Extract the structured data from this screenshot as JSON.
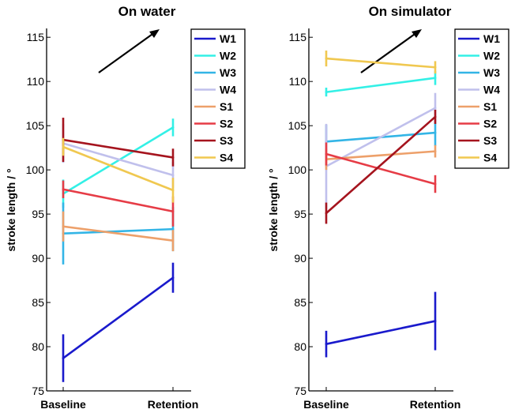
{
  "chart_data": [
    {
      "type": "line",
      "title": "On water",
      "xlabel": "",
      "ylabel": "stroke length / °",
      "categories": [
        "Baseline",
        "Retention"
      ],
      "ylim": [
        75,
        116
      ],
      "yticks": [
        75,
        80,
        85,
        90,
        95,
        100,
        105,
        110,
        115
      ],
      "legend": "top-right",
      "annotation": "arrow pointing up-right (longer strokes)",
      "series": [
        {
          "name": "W1",
          "color": "#1a1acc",
          "values": [
            78.7,
            87.8
          ],
          "errors": [
            2.7,
            1.7
          ]
        },
        {
          "name": "W2",
          "color": "#33f0e6",
          "values": [
            97.3,
            104.8
          ],
          "errors": [
            1.6,
            1.0
          ]
        },
        {
          "name": "W3",
          "color": "#33b5e6",
          "values": [
            92.8,
            93.3
          ],
          "errors": [
            3.5,
            2.5
          ]
        },
        {
          "name": "W4",
          "color": "#c0c0ec",
          "values": [
            103.0,
            99.4
          ],
          "errors": [
            2.2,
            1.5
          ]
        },
        {
          "name": "S1",
          "color": "#eda06a",
          "values": [
            93.6,
            92.0
          ],
          "errors": [
            1.7,
            1.2
          ]
        },
        {
          "name": "S2",
          "color": "#e63c46",
          "values": [
            97.8,
            95.3
          ],
          "errors": [
            1.0,
            1.7
          ]
        },
        {
          "name": "S3",
          "color": "#a5141e",
          "values": [
            103.4,
            101.4
          ],
          "errors": [
            2.5,
            1.0
          ]
        },
        {
          "name": "S4",
          "color": "#f0c850",
          "values": [
            102.6,
            97.7
          ],
          "errors": [
            1.0,
            1.4
          ]
        }
      ]
    },
    {
      "type": "line",
      "title": "On simulator",
      "xlabel": "",
      "ylabel": "stroke length / °",
      "categories": [
        "Baseline",
        "Retention"
      ],
      "ylim": [
        75,
        116
      ],
      "yticks": [
        75,
        80,
        85,
        90,
        95,
        100,
        105,
        110,
        115
      ],
      "legend": "top-right",
      "annotation": "arrow pointing up-right (longer strokes)",
      "series": [
        {
          "name": "W1",
          "color": "#1a1acc",
          "values": [
            80.3,
            82.9
          ],
          "errors": [
            1.5,
            3.3
          ]
        },
        {
          "name": "W2",
          "color": "#33f0e6",
          "values": [
            108.8,
            110.4
          ],
          "errors": [
            0.5,
            0.8
          ]
        },
        {
          "name": "W3",
          "color": "#33b5e6",
          "values": [
            103.2,
            104.2
          ],
          "errors": [
            1.9,
            1.5
          ]
        },
        {
          "name": "W4",
          "color": "#c0c0ec",
          "values": [
            100.4,
            107.0
          ],
          "errors": [
            4.8,
            1.7
          ]
        },
        {
          "name": "S1",
          "color": "#eda06a",
          "values": [
            101.2,
            102.1
          ],
          "errors": [
            1.2,
            0.7
          ]
        },
        {
          "name": "S2",
          "color": "#e63c46",
          "values": [
            101.8,
            98.4
          ],
          "errors": [
            1.3,
            1.0
          ]
        },
        {
          "name": "S3",
          "color": "#a5141e",
          "values": [
            95.1,
            106.0
          ],
          "errors": [
            1.2,
            0.8
          ]
        },
        {
          "name": "S4",
          "color": "#f0c850",
          "values": [
            112.6,
            111.6
          ],
          "errors": [
            0.9,
            0.7
          ]
        }
      ]
    }
  ]
}
